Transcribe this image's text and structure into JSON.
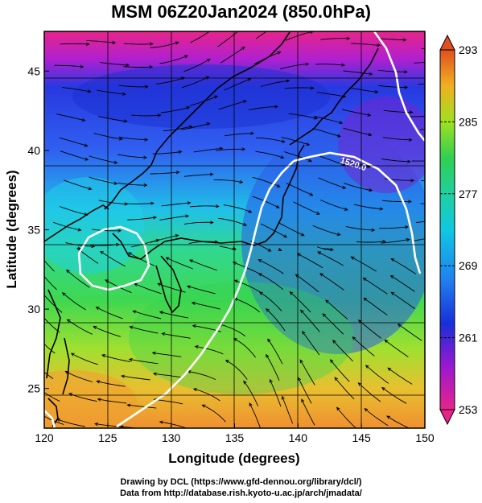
{
  "title": "MSM 06Z20Jan2024 (850.0hPa)",
  "map": {
    "xlabel": "Longitude (degrees)",
    "ylabel": "Latitude  (degrees)",
    "x_ticks": [
      "120",
      "125",
      "130",
      "135",
      "140",
      "145",
      "150"
    ],
    "y_ticks": [
      "25",
      "30",
      "35",
      "40",
      "45"
    ],
    "lon_range": [
      120,
      150
    ],
    "lat_range": [
      22.5,
      47.5
    ],
    "contour_label": "1520.0"
  },
  "colorbar": {
    "ticks": [
      "293",
      "285",
      "277",
      "269",
      "261",
      "253"
    ],
    "range": [
      253,
      293
    ],
    "colors": [
      "#e8248a",
      "#8a18d0",
      "#1830d8",
      "#10c8e0",
      "#28d070",
      "#60e020",
      "#d0e020",
      "#f0a020",
      "#e05020"
    ]
  },
  "credits": {
    "line1": "Drawing by DCL (https://www.gfd-dennou.org/library/dcl/)",
    "line2": "Data from http://database.rish.kyoto-u.ac.jp/arch/jmadata/"
  }
}
